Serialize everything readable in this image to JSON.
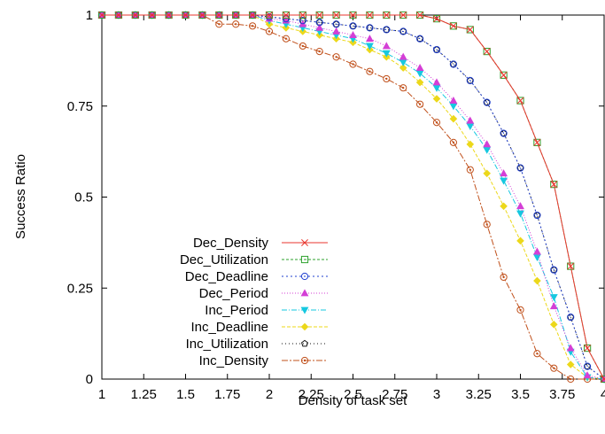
{
  "chart_data": {
    "type": "line",
    "title": "",
    "xlabel": "Density of task set",
    "ylabel": "Success Ratio",
    "xlim": [
      1,
      4
    ],
    "ylim": [
      0,
      1
    ],
    "x_ticks": [
      1,
      1.25,
      1.5,
      1.75,
      2,
      2.25,
      2.5,
      2.75,
      3,
      3.25,
      3.5,
      3.75,
      4
    ],
    "x_tick_labels": [
      "1",
      "1.25",
      "1.5",
      "1.75",
      "2",
      "2.25",
      "2.5",
      "2.75",
      "3",
      "3.25",
      "3.5",
      "3.75",
      "4"
    ],
    "y_ticks": [
      0,
      0.25,
      0.5,
      0.75,
      1
    ],
    "y_tick_labels": [
      "0",
      "0.25",
      "0.5",
      "0.75",
      "1"
    ],
    "grid": false,
    "legend_position": "bottom-left",
    "x": [
      1.0,
      1.1,
      1.2,
      1.3,
      1.4,
      1.5,
      1.6,
      1.7,
      1.8,
      1.9,
      2.0,
      2.1,
      2.2,
      2.3,
      2.4,
      2.5,
      2.6,
      2.7,
      2.8,
      2.9,
      3.0,
      3.1,
      3.2,
      3.3,
      3.4,
      3.5,
      3.6,
      3.7,
      3.8,
      3.9,
      4.0
    ],
    "series": [
      {
        "name": "Dec_Density",
        "color": "#e8352c",
        "marker": "x",
        "dash": "",
        "values": [
          1,
          1,
          1,
          1,
          1,
          1,
          1,
          1,
          1,
          1,
          1,
          1,
          1,
          1,
          1,
          1,
          1,
          1,
          1,
          1,
          0.99,
          0.97,
          0.96,
          0.9,
          0.835,
          0.765,
          0.65,
          0.535,
          0.31,
          0.085,
          0
        ]
      },
      {
        "name": "Dec_Utilization",
        "color": "#2ca02c",
        "marker": "square",
        "dash": "3,2",
        "values": [
          1,
          1,
          1,
          1,
          1,
          1,
          1,
          1,
          1,
          1,
          1,
          1,
          1,
          1,
          1,
          1,
          1,
          1,
          1,
          1,
          0.99,
          0.97,
          0.96,
          0.9,
          0.835,
          0.765,
          0.65,
          0.535,
          0.31,
          0.085,
          0
        ]
      },
      {
        "name": "Dec_Deadline",
        "color": "#1f3fd0",
        "marker": "circle",
        "dash": "2,3",
        "values": [
          1,
          1,
          1,
          1,
          1,
          1,
          1,
          1,
          1,
          1,
          0.995,
          0.99,
          0.985,
          0.98,
          0.975,
          0.97,
          0.965,
          0.96,
          0.955,
          0.935,
          0.905,
          0.865,
          0.82,
          0.76,
          0.675,
          0.58,
          0.45,
          0.3,
          0.17,
          0.035,
          0
        ]
      },
      {
        "name": "Dec_Period",
        "color": "#d43fd6",
        "marker": "triangle",
        "dash": "1,2",
        "values": [
          1,
          1,
          1,
          1,
          1,
          1,
          1,
          1,
          1,
          1,
          0.99,
          0.985,
          0.975,
          0.965,
          0.955,
          0.945,
          0.935,
          0.915,
          0.885,
          0.855,
          0.815,
          0.765,
          0.71,
          0.645,
          0.565,
          0.475,
          0.35,
          0.2,
          0.085,
          0.01,
          0
        ]
      },
      {
        "name": "Inc_Period",
        "color": "#16c8e0",
        "marker": "triangle-down",
        "dash": "6,2,1,2",
        "values": [
          1,
          1,
          1,
          1,
          1,
          1,
          1,
          1,
          1,
          1,
          0.985,
          0.975,
          0.965,
          0.955,
          0.945,
          0.935,
          0.915,
          0.895,
          0.87,
          0.84,
          0.8,
          0.75,
          0.695,
          0.63,
          0.545,
          0.455,
          0.335,
          0.225,
          0.075,
          0.005,
          0
        ]
      },
      {
        "name": "Inc_Deadline",
        "color": "#ecd81a",
        "marker": "diamond",
        "dash": "4,2",
        "values": [
          1,
          1,
          1,
          1,
          1,
          1,
          1,
          1,
          1,
          1,
          0.975,
          0.965,
          0.955,
          0.945,
          0.935,
          0.925,
          0.905,
          0.885,
          0.855,
          0.815,
          0.77,
          0.715,
          0.645,
          0.565,
          0.475,
          0.38,
          0.27,
          0.15,
          0.04,
          0.005,
          0
        ]
      },
      {
        "name": "Inc_Utilization",
        "color": "#111111",
        "marker": "pentagon",
        "dash": "1,3",
        "values": [
          1,
          1,
          1,
          1,
          1,
          1,
          1,
          1,
          1,
          1,
          0.995,
          0.99,
          0.985,
          0.98,
          0.975,
          0.97,
          0.965,
          0.96,
          0.955,
          0.935,
          0.905,
          0.865,
          0.82,
          0.76,
          0.675,
          0.58,
          0.45,
          0.3,
          0.17,
          0.035,
          0
        ]
      },
      {
        "name": "Inc_Density",
        "color": "#c0501b",
        "marker": "circle-dot",
        "dash": "7,2,2,2",
        "values": [
          1,
          1,
          1,
          1,
          1,
          1,
          1,
          0.975,
          0.975,
          0.97,
          0.955,
          0.935,
          0.915,
          0.9,
          0.885,
          0.865,
          0.845,
          0.825,
          0.8,
          0.755,
          0.705,
          0.65,
          0.575,
          0.425,
          0.28,
          0.19,
          0.07,
          0.03,
          0,
          0,
          0
        ]
      }
    ]
  }
}
